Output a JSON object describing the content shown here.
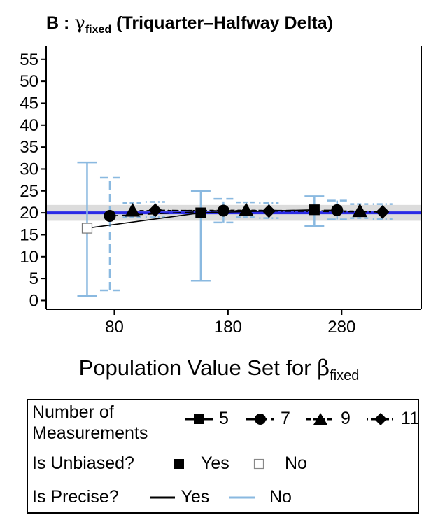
{
  "title": {
    "panel": "B",
    "separator": ":",
    "symbol": "γ",
    "subscript": "fixed",
    "text": "(Triquarter–Halfway Delta)"
  },
  "chart_data": {
    "type": "scatter",
    "xlabel": {
      "text": "Population Value Set for ",
      "symbol": "β",
      "subscript": "fixed"
    },
    "ylabel": "",
    "xlim": [
      20,
      350
    ],
    "ylim": [
      -2,
      58
    ],
    "xticks": [
      80,
      180,
      280
    ],
    "yticks": [
      0,
      5,
      10,
      15,
      20,
      25,
      30,
      35,
      40,
      45,
      50,
      55
    ],
    "reference_line": {
      "y": 20,
      "band": [
        18.2,
        21.8
      ],
      "color": "#2a2ae6",
      "band_color": "#dcdcdc"
    },
    "colors": {
      "precise": "#000000",
      "imprecise": "#8ab9e0"
    },
    "series": [
      {
        "name": "5",
        "marker": "square",
        "dash": "solid",
        "points": [
          {
            "x": 56,
            "y": 16.5,
            "lo": 1,
            "hi": 31.5,
            "unbiased": false,
            "precise": false
          },
          {
            "x": 156,
            "y": 20.0,
            "lo": 4.5,
            "hi": 25,
            "unbiased": true,
            "precise": false
          },
          {
            "x": 256,
            "y": 20.7,
            "lo": 17,
            "hi": 23.8,
            "unbiased": true,
            "precise": false
          }
        ]
      },
      {
        "name": "7",
        "marker": "circle",
        "dash": "longdash",
        "points": [
          {
            "x": 76,
            "y": 19.3,
            "lo": 2.3,
            "hi": 28,
            "unbiased": true,
            "precise": false
          },
          {
            "x": 176,
            "y": 20.5,
            "lo": 17.8,
            "hi": 23.2,
            "unbiased": true,
            "precise": false
          },
          {
            "x": 276,
            "y": 20.6,
            "lo": 18.5,
            "hi": 22.8,
            "unbiased": true,
            "precise": false
          }
        ]
      },
      {
        "name": "9",
        "marker": "triangle",
        "dash": "shortdash",
        "points": [
          {
            "x": 96,
            "y": 20.5,
            "lo": 19,
            "hi": 22.3,
            "unbiased": true,
            "precise": false
          },
          {
            "x": 196,
            "y": 20.6,
            "lo": 19,
            "hi": 22.4,
            "unbiased": true,
            "precise": false
          },
          {
            "x": 296,
            "y": 20.4,
            "lo": 18.8,
            "hi": 22,
            "unbiased": true,
            "precise": false
          }
        ]
      },
      {
        "name": "11",
        "marker": "diamond",
        "dash": "dotdash",
        "points": [
          {
            "x": 116,
            "y": 20.6,
            "lo": 19,
            "hi": 22.5,
            "unbiased": true,
            "precise": false
          },
          {
            "x": 216,
            "y": 20.4,
            "lo": 18.8,
            "hi": 22.3,
            "unbiased": true,
            "precise": false
          },
          {
            "x": 316,
            "y": 20.2,
            "lo": 18.6,
            "hi": 22,
            "unbiased": true,
            "precise": false
          }
        ]
      }
    ]
  },
  "legend": {
    "measurements_title_line1": "Number of",
    "measurements_title_line2": "Measurements",
    "measurements": [
      "5",
      "7",
      "9",
      "11"
    ],
    "unbiased_title": "Is Unbiased?",
    "unbiased_yes": "Yes",
    "unbiased_no": "No",
    "precise_title": "Is Precise?",
    "precise_yes": "Yes",
    "precise_no": "No"
  }
}
